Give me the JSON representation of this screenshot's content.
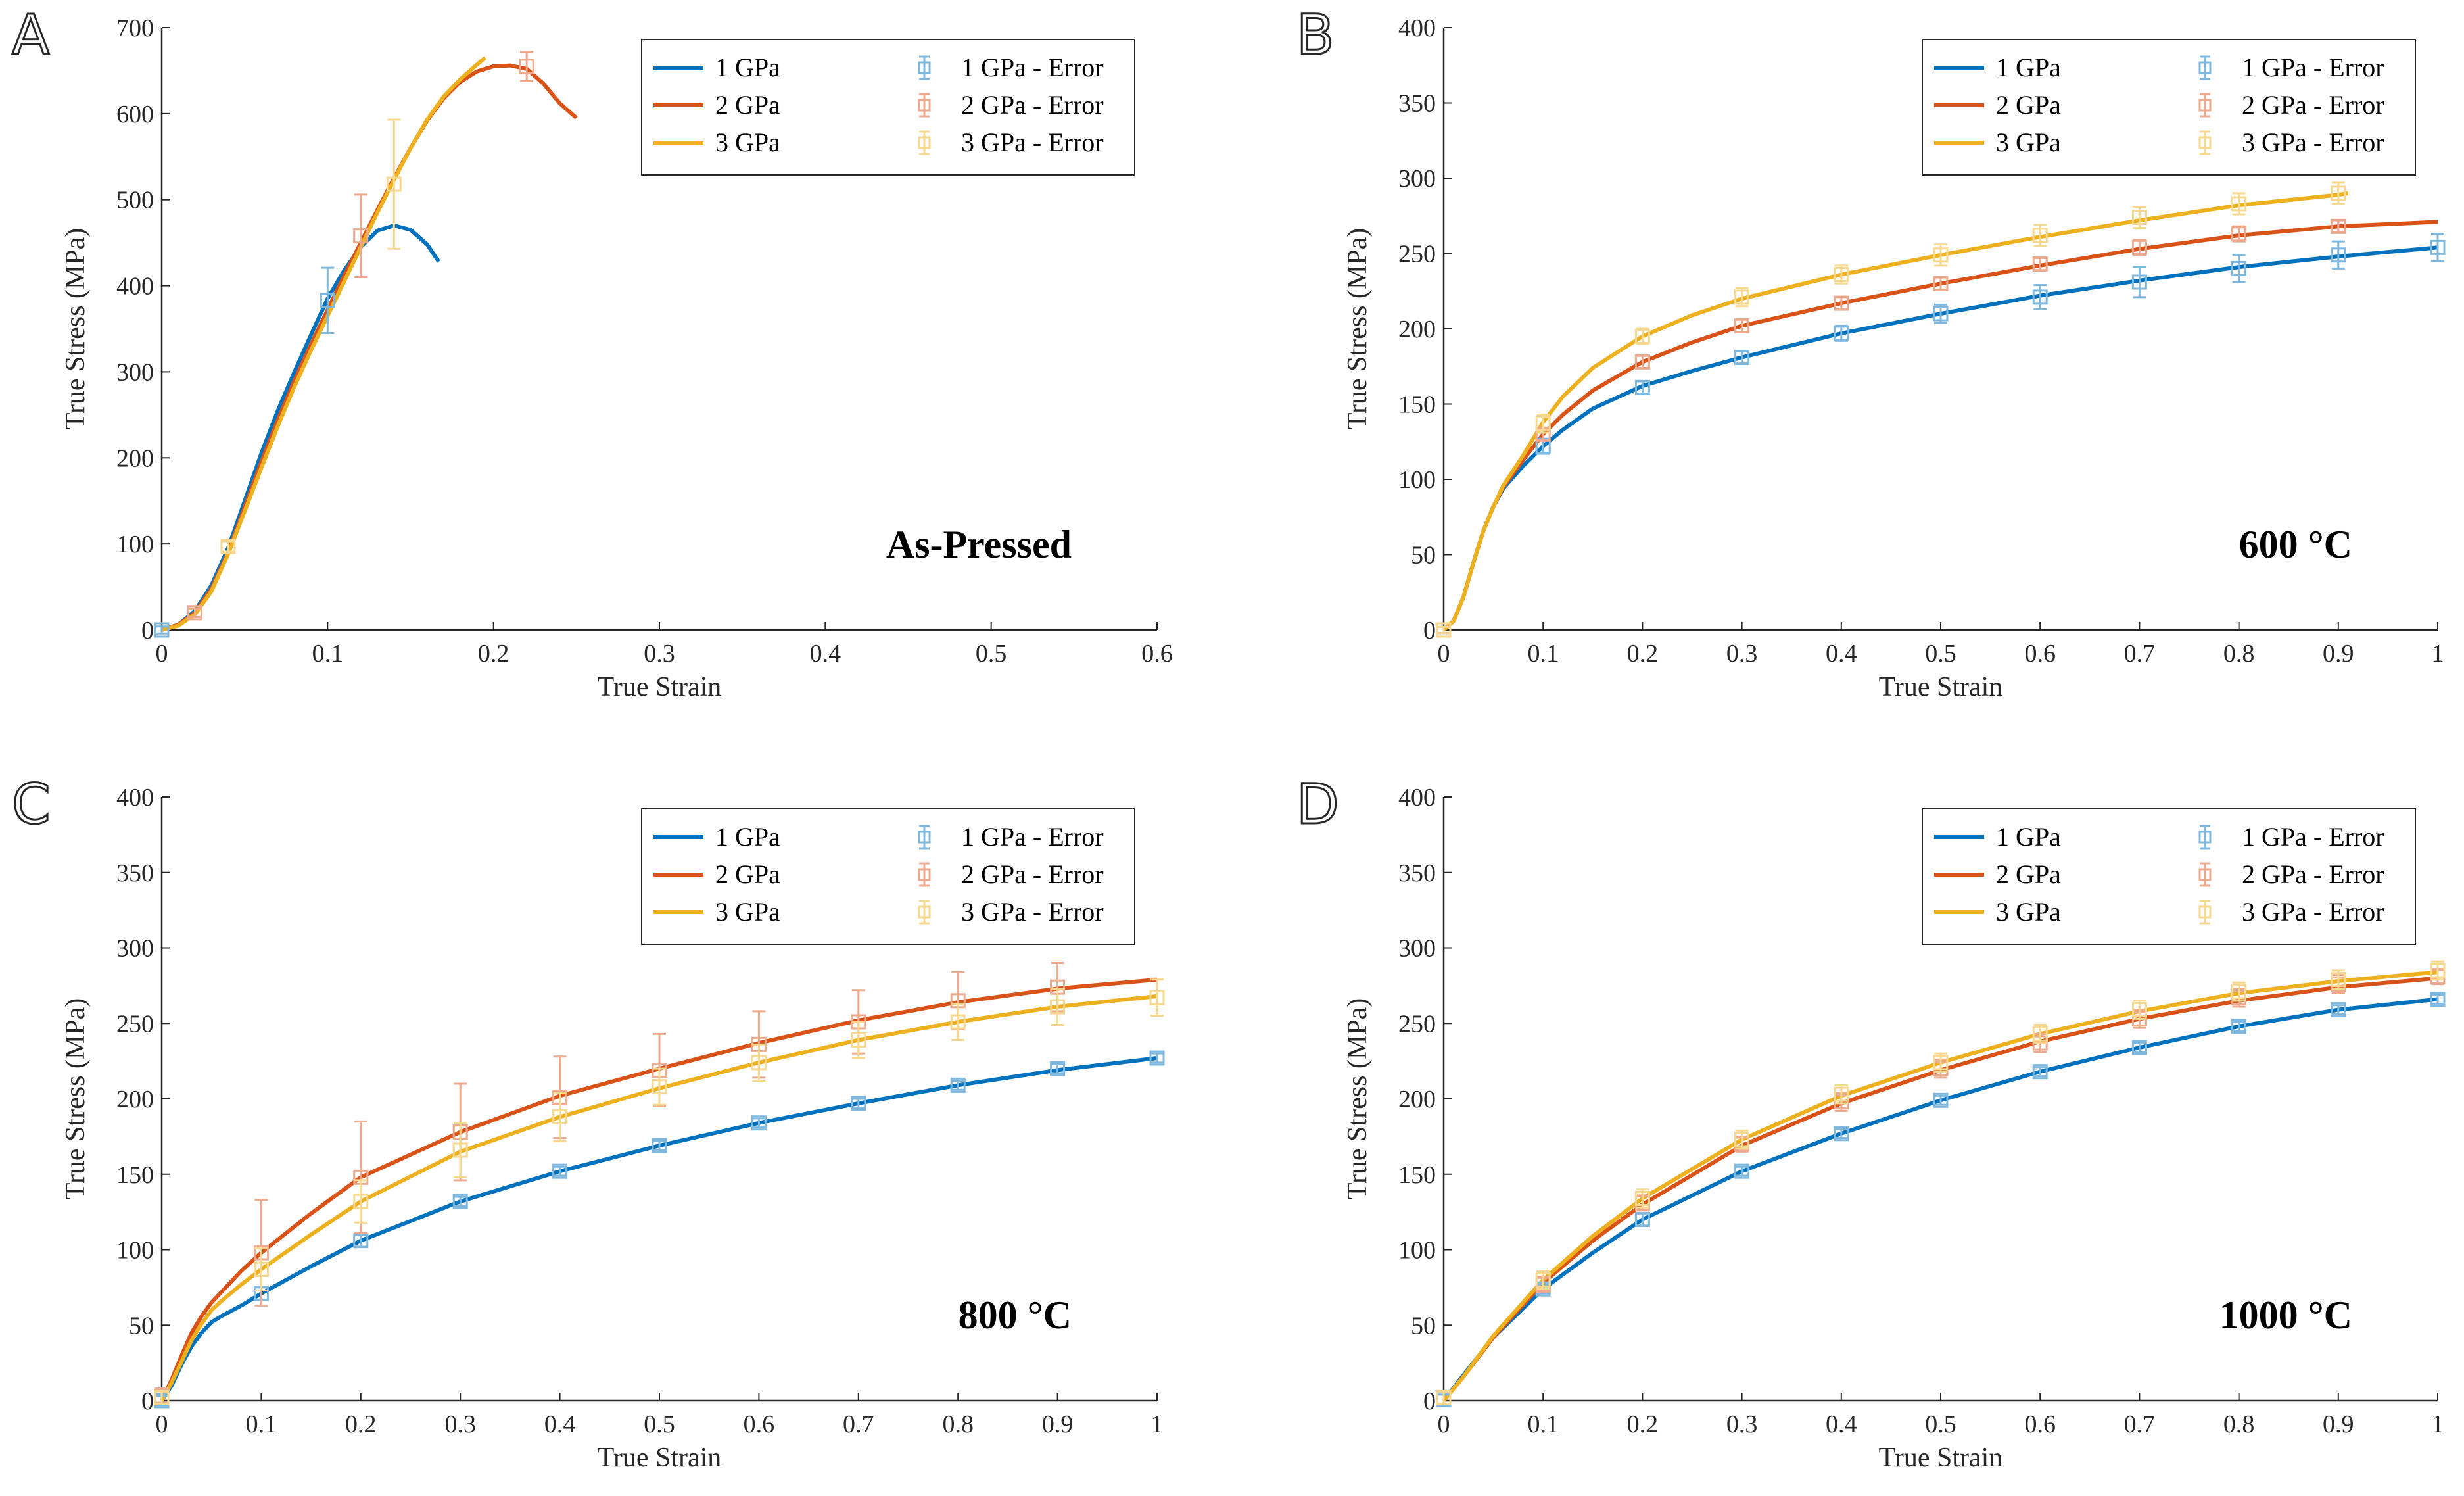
{
  "figure": {
    "colors": {
      "s1": "#0072BD",
      "s2": "#D95319",
      "s3": "#EDB120",
      "s1_err": "#7FB8DE",
      "s2_err": "#ECA98C",
      "s3_err": "#F6D88F"
    }
  },
  "chart_data": [
    {
      "panel": "A",
      "type": "line",
      "annotation": "As-Pressed",
      "xlabel": "True Strain",
      "ylabel": "True Stress (MPa)",
      "xlim": [
        0,
        0.6
      ],
      "ylim": [
        0,
        700
      ],
      "xticks": [
        "0",
        "0.1",
        "0.2",
        "0.3",
        "0.4",
        "0.5",
        "0.6"
      ],
      "yticks": [
        "0",
        "100",
        "200",
        "300",
        "400",
        "500",
        "600",
        "700"
      ],
      "legend": [
        "1 GPa",
        "1 GPa - Error",
        "2 GPa",
        "2 GPa - Error",
        "3 GPa",
        "3 GPa - Error"
      ],
      "legend_location": "top-right",
      "series": [
        {
          "name": "1 GPa",
          "x": [
            0,
            0.01,
            0.02,
            0.03,
            0.04,
            0.05,
            0.06,
            0.07,
            0.08,
            0.09,
            0.1,
            0.11,
            0.12,
            0.13,
            0.14,
            0.15,
            0.16,
            0.167
          ],
          "y": [
            0,
            6,
            22,
            52,
            95,
            150,
            205,
            255,
            300,
            343,
            385,
            418,
            445,
            464,
            470,
            465,
            448,
            428
          ]
        },
        {
          "name": "2 GPa",
          "x": [
            0,
            0.01,
            0.02,
            0.03,
            0.04,
            0.05,
            0.06,
            0.07,
            0.08,
            0.09,
            0.1,
            0.11,
            0.12,
            0.13,
            0.14,
            0.15,
            0.16,
            0.17,
            0.18,
            0.19,
            0.2,
            0.21,
            0.22,
            0.23,
            0.24,
            0.25
          ],
          "y": [
            0,
            6,
            20,
            48,
            90,
            143,
            195,
            244,
            290,
            332,
            372,
            412,
            450,
            488,
            525,
            560,
            592,
            618,
            637,
            649,
            655,
            656,
            652,
            635,
            612,
            595
          ]
        },
        {
          "name": "3 GPa",
          "x": [
            0,
            0.01,
            0.02,
            0.03,
            0.04,
            0.05,
            0.06,
            0.07,
            0.08,
            0.09,
            0.1,
            0.11,
            0.12,
            0.13,
            0.14,
            0.15,
            0.16,
            0.17,
            0.18,
            0.19,
            0.195
          ],
          "y": [
            0,
            5,
            18,
            45,
            88,
            138,
            188,
            237,
            283,
            325,
            365,
            405,
            445,
            485,
            523,
            560,
            593,
            620,
            640,
            657,
            665
          ]
        }
      ],
      "error_bars": [
        {
          "name": "1 GPa - Error",
          "x": [
            0,
            0.1
          ],
          "y": [
            0,
            383
          ],
          "err": [
            4,
            38
          ]
        },
        {
          "name": "2 GPa - Error",
          "x": [
            0.02,
            0.12,
            0.22
          ],
          "y": [
            20,
            458,
            655
          ],
          "err": [
            5,
            48,
            17
          ]
        },
        {
          "name": "3 GPa - Error",
          "x": [
            0.04,
            0.14
          ],
          "y": [
            97,
            518
          ],
          "err": [
            6,
            75
          ]
        }
      ]
    },
    {
      "panel": "B",
      "type": "line",
      "annotation": "600 °C",
      "xlabel": "True Strain",
      "ylabel": "True Stress (MPa)",
      "xlim": [
        0,
        1
      ],
      "ylim": [
        0,
        400
      ],
      "xticks": [
        "0",
        "0.1",
        "0.2",
        "0.3",
        "0.4",
        "0.5",
        "0.6",
        "0.7",
        "0.8",
        "0.9",
        "1"
      ],
      "yticks": [
        "0",
        "50",
        "100",
        "150",
        "200",
        "250",
        "300",
        "350",
        "400"
      ],
      "legend": [
        "1 GPa",
        "1 GPa - Error",
        "2 GPa",
        "2 GPa - Error",
        "3 GPa",
        "3 GPa - Error"
      ],
      "legend_location": "top-right",
      "series": [
        {
          "name": "1 GPa",
          "x": [
            0,
            0.01,
            0.02,
            0.03,
            0.04,
            0.05,
            0.06,
            0.08,
            0.1,
            0.12,
            0.15,
            0.2,
            0.25,
            0.3,
            0.4,
            0.5,
            0.6,
            0.7,
            0.8,
            0.9,
            1.0
          ],
          "y": [
            0,
            6,
            22,
            45,
            66,
            82,
            94,
            109,
            122,
            133,
            147,
            162,
            172,
            181,
            197,
            210,
            222,
            232,
            241,
            248,
            254
          ]
        },
        {
          "name": "2 GPa",
          "x": [
            0,
            0.01,
            0.02,
            0.03,
            0.04,
            0.05,
            0.06,
            0.08,
            0.1,
            0.12,
            0.15,
            0.2,
            0.25,
            0.3,
            0.4,
            0.5,
            0.6,
            0.7,
            0.8,
            0.9,
            1.0
          ],
          "y": [
            0,
            6,
            22,
            45,
            66,
            82,
            95,
            113,
            130,
            143,
            159,
            178,
            191,
            202,
            217,
            230,
            242,
            253,
            262,
            268,
            271
          ]
        },
        {
          "name": "3 GPa",
          "x": [
            0,
            0.01,
            0.02,
            0.03,
            0.04,
            0.05,
            0.06,
            0.08,
            0.1,
            0.12,
            0.15,
            0.2,
            0.25,
            0.3,
            0.4,
            0.5,
            0.6,
            0.7,
            0.8,
            0.9,
            0.91
          ],
          "y": [
            0,
            6,
            22,
            45,
            66,
            82,
            96,
            116,
            138,
            155,
            174,
            195,
            209,
            220,
            236,
            249,
            261,
            272,
            282,
            289,
            290
          ]
        }
      ],
      "error_bars": [
        {
          "name": "1 GPa - Error",
          "x": [
            0,
            0.1,
            0.2,
            0.3,
            0.4,
            0.5,
            0.6,
            0.7,
            0.8,
            0.9,
            1.0
          ],
          "y": [
            0,
            122,
            161,
            181,
            197,
            210,
            221,
            231,
            240,
            249,
            254
          ],
          "err": [
            2,
            5,
            4,
            4,
            5,
            6,
            8,
            10,
            9,
            9,
            9
          ]
        },
        {
          "name": "2 GPa - Error",
          "x": [
            0,
            0.1,
            0.2,
            0.3,
            0.4,
            0.5,
            0.6,
            0.7,
            0.8,
            0.9
          ],
          "y": [
            0,
            130,
            178,
            202,
            217,
            230,
            243,
            254,
            263,
            268
          ],
          "err": [
            2,
            4,
            4,
            4,
            4,
            4,
            4,
            5,
            5,
            4
          ]
        },
        {
          "name": "3 GPa - Error",
          "x": [
            0,
            0.1,
            0.2,
            0.3,
            0.4,
            0.5,
            0.6,
            0.7,
            0.8,
            0.9
          ],
          "y": [
            0,
            137,
            195,
            221,
            236,
            249,
            262,
            274,
            283,
            290
          ],
          "err": [
            2,
            6,
            5,
            6,
            6,
            7,
            7,
            7,
            7,
            7
          ]
        }
      ]
    },
    {
      "panel": "C",
      "type": "line",
      "annotation": "800 °C",
      "xlabel": "True Strain",
      "ylabel": "True Stress (MPa)",
      "xlim": [
        0,
        1
      ],
      "ylim": [
        0,
        400
      ],
      "xticks": [
        "0",
        "0.1",
        "0.2",
        "0.3",
        "0.4",
        "0.5",
        "0.6",
        "0.7",
        "0.8",
        "0.9",
        "1"
      ],
      "yticks": [
        "0",
        "50",
        "100",
        "150",
        "200",
        "250",
        "300",
        "350",
        "400"
      ],
      "legend": [
        "1 GPa",
        "1 GPa - Error",
        "2 GPa",
        "2 GPa - Error",
        "3 GPa",
        "3 GPa - Error"
      ],
      "legend_location": "top-right",
      "series": [
        {
          "name": "1 GPa",
          "x": [
            0,
            0.01,
            0.02,
            0.03,
            0.04,
            0.05,
            0.06,
            0.08,
            0.1,
            0.15,
            0.2,
            0.3,
            0.4,
            0.5,
            0.6,
            0.7,
            0.8,
            0.9,
            1.0
          ],
          "y": [
            0,
            10,
            24,
            36,
            45,
            52,
            56,
            63,
            71,
            89,
            106,
            132,
            152,
            169,
            184,
            197,
            209,
            219,
            227
          ]
        },
        {
          "name": "2 GPa",
          "x": [
            0,
            0.01,
            0.02,
            0.03,
            0.04,
            0.05,
            0.06,
            0.08,
            0.1,
            0.15,
            0.2,
            0.3,
            0.4,
            0.5,
            0.6,
            0.7,
            0.8,
            0.9,
            1.0
          ],
          "y": [
            0,
            14,
            30,
            45,
            56,
            65,
            72,
            86,
            98,
            124,
            148,
            178,
            202,
            220,
            237,
            252,
            264,
            273,
            279
          ]
        },
        {
          "name": "3 GPa",
          "x": [
            0,
            0.01,
            0.02,
            0.03,
            0.04,
            0.05,
            0.06,
            0.08,
            0.1,
            0.15,
            0.2,
            0.3,
            0.4,
            0.5,
            0.6,
            0.7,
            0.8,
            0.9,
            1.0
          ],
          "y": [
            0,
            12,
            26,
            40,
            51,
            60,
            66,
            77,
            87,
            110,
            132,
            165,
            188,
            207,
            224,
            239,
            251,
            261,
            268
          ]
        }
      ],
      "error_bars": [
        {
          "name": "1 GPa - Error",
          "x": [
            0,
            0.1,
            0.2,
            0.3,
            0.4,
            0.5,
            0.6,
            0.7,
            0.8,
            0.9,
            1.0
          ],
          "y": [
            0,
            71,
            106,
            132,
            152,
            169,
            184,
            197,
            209,
            220,
            227
          ],
          "err": [
            3,
            4,
            4,
            3,
            3,
            3,
            3,
            3,
            3,
            3,
            3
          ]
        },
        {
          "name": "2 GPa - Error",
          "x": [
            0,
            0.1,
            0.2,
            0.3,
            0.4,
            0.5,
            0.6,
            0.7,
            0.8,
            0.9
          ],
          "y": [
            3,
            98,
            148,
            178,
            201,
            219,
            236,
            251,
            265,
            274
          ],
          "err": [
            5,
            35,
            37,
            32,
            27,
            24,
            22,
            21,
            19,
            16
          ]
        },
        {
          "name": "3 GPa - Error",
          "x": [
            0,
            0.1,
            0.2,
            0.3,
            0.4,
            0.5,
            0.6,
            0.7,
            0.8,
            0.9,
            1.0
          ],
          "y": [
            2,
            87,
            132,
            166,
            188,
            208,
            224,
            239,
            251,
            261,
            267
          ],
          "err": [
            4,
            14,
            14,
            18,
            16,
            12,
            12,
            12,
            12,
            12,
            12
          ]
        }
      ]
    },
    {
      "panel": "D",
      "type": "line",
      "annotation": "1000 °C",
      "xlabel": "True Strain",
      "ylabel": "True Stress (MPa)",
      "xlim": [
        0,
        1
      ],
      "ylim": [
        0,
        400
      ],
      "xticks": [
        "0",
        "0.1",
        "0.2",
        "0.3",
        "0.4",
        "0.5",
        "0.6",
        "0.7",
        "0.8",
        "0.9",
        "1"
      ],
      "yticks": [
        "0",
        "50",
        "100",
        "150",
        "200",
        "250",
        "300",
        "350",
        "400"
      ],
      "legend": [
        "1 GPa",
        "1 GPa - Error",
        "2 GPa",
        "2 GPa - Error",
        "3 GPa",
        "3 GPa - Error"
      ],
      "legend_location": "top-right",
      "series": [
        {
          "name": "1 GPa",
          "x": [
            0,
            0.02,
            0.05,
            0.1,
            0.15,
            0.2,
            0.3,
            0.4,
            0.5,
            0.6,
            0.7,
            0.8,
            0.9,
            1.0
          ],
          "y": [
            0,
            17,
            42,
            74,
            98,
            120,
            152,
            177,
            199,
            218,
            234,
            248,
            259,
            266
          ]
        },
        {
          "name": "2 GPa",
          "x": [
            0,
            0.02,
            0.05,
            0.1,
            0.15,
            0.2,
            0.3,
            0.4,
            0.5,
            0.6,
            0.7,
            0.8,
            0.9,
            1.0
          ],
          "y": [
            0,
            16,
            42,
            78,
            106,
            130,
            169,
            197,
            219,
            238,
            253,
            265,
            274,
            280
          ]
        },
        {
          "name": "3 GPa",
          "x": [
            0,
            0.02,
            0.05,
            0.1,
            0.15,
            0.2,
            0.3,
            0.4,
            0.5,
            0.6,
            0.7,
            0.8,
            0.9,
            1.0
          ],
          "y": [
            0,
            16,
            43,
            80,
            109,
            134,
            173,
            202,
            224,
            243,
            258,
            270,
            278,
            284
          ]
        }
      ],
      "error_bars": [
        {
          "name": "1 GPa - Error",
          "x": [
            0,
            0.1,
            0.2,
            0.3,
            0.4,
            0.5,
            0.6,
            0.7,
            0.8,
            0.9,
            1.0
          ],
          "y": [
            1,
            74,
            120,
            152,
            177,
            199,
            218,
            234,
            248,
            259,
            266
          ],
          "err": [
            3,
            3,
            4,
            3,
            3,
            3,
            3,
            3,
            3,
            3,
            3
          ]
        },
        {
          "name": "2 GPa - Error",
          "x": [
            0,
            0.1,
            0.2,
            0.3,
            0.4,
            0.5,
            0.6,
            0.7,
            0.8,
            0.9,
            1.0
          ],
          "y": [
            2,
            77,
            131,
            170,
            198,
            220,
            237,
            253,
            267,
            276,
            281
          ],
          "err": [
            4,
            5,
            5,
            5,
            6,
            6,
            6,
            6,
            6,
            6,
            5
          ]
        },
        {
          "name": "3 GPa - Error",
          "x": [
            0,
            0.1,
            0.2,
            0.3,
            0.4,
            0.5,
            0.6,
            0.7,
            0.8,
            0.9,
            1.0
          ],
          "y": [
            2,
            80,
            134,
            173,
            203,
            224,
            243,
            259,
            271,
            279,
            285
          ],
          "err": [
            4,
            6,
            6,
            6,
            6,
            6,
            6,
            6,
            6,
            6,
            6
          ]
        }
      ]
    }
  ]
}
